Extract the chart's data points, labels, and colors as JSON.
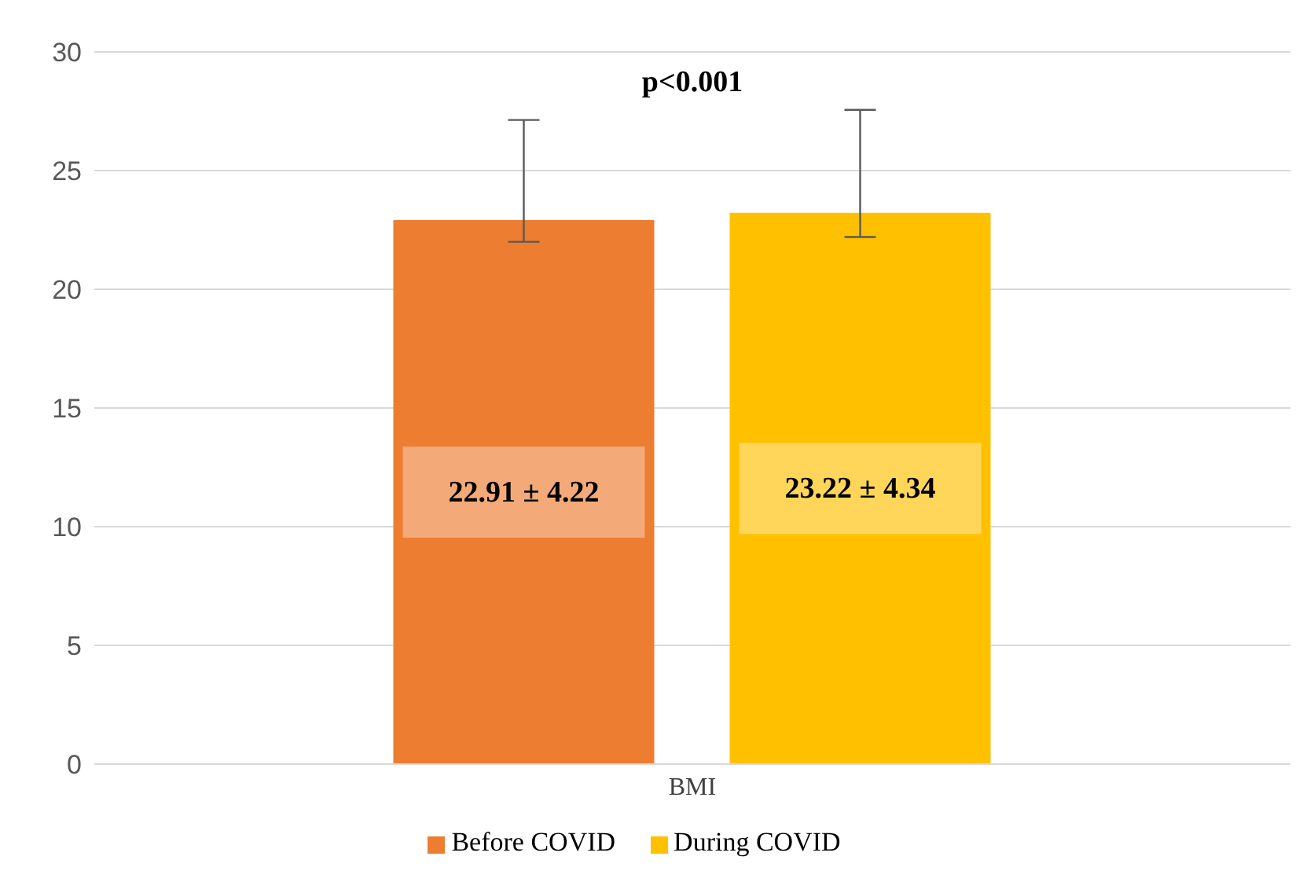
{
  "chart_data": {
    "type": "bar",
    "categories": [
      "BMI"
    ],
    "series": [
      {
        "name": "Before COVID",
        "color": "#ed7d31",
        "values": [
          22.91
        ],
        "errors": [
          [
            22.0,
            27.13
          ]
        ],
        "value_labels": [
          "22.91 ± 4.22"
        ]
      },
      {
        "name": "During COVID",
        "color": "#ffc000",
        "values": [
          23.22
        ],
        "errors": [
          [
            22.2,
            27.56
          ]
        ],
        "value_labels": [
          "23.22 ± 4.34"
        ]
      }
    ],
    "ylim": [
      0,
      30
    ],
    "yticks": [
      0,
      5,
      10,
      15,
      20,
      25,
      30
    ],
    "grid": "y",
    "legend": "bottom",
    "annotations": [
      "p<0.001"
    ]
  }
}
